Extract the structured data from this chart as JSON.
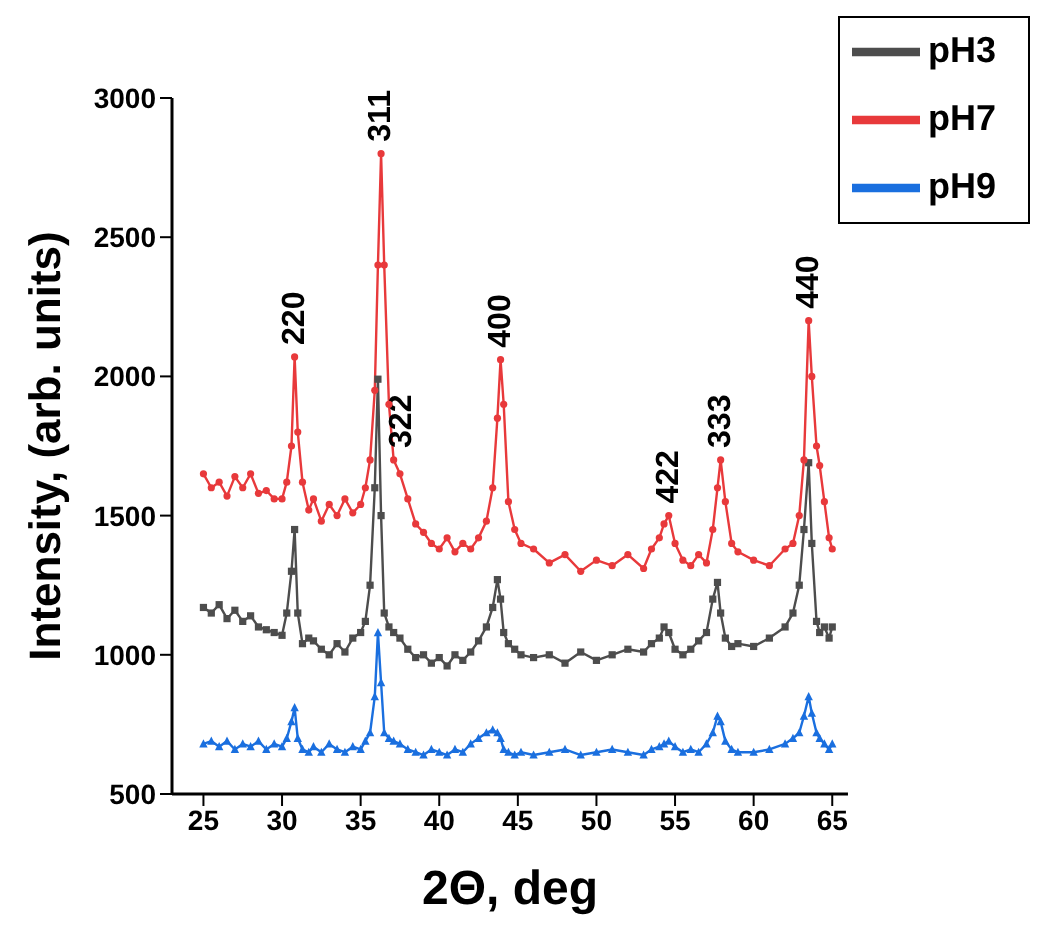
{
  "chart_data": {
    "type": "line",
    "xlabel": "2Θ, deg",
    "ylabel": "Intensity, (arb. units)",
    "x": [
      25,
      25.5,
      26,
      26.5,
      27,
      27.5,
      28,
      28.5,
      29,
      29.5,
      30,
      30.3,
      30.6,
      30.8,
      31.0,
      31.3,
      31.7,
      32,
      32.5,
      33,
      33.5,
      34,
      34.5,
      35,
      35.3,
      35.6,
      35.9,
      36.1,
      36.3,
      36.5,
      36.8,
      37.1,
      37.5,
      38,
      38.5,
      39,
      39.5,
      40,
      40.5,
      41,
      41.5,
      42,
      42.5,
      43,
      43.4,
      43.7,
      43.9,
      44.1,
      44.4,
      44.8,
      45.2,
      46,
      47,
      48,
      49,
      50,
      51,
      52,
      53,
      53.5,
      54,
      54.3,
      54.6,
      55,
      55.5,
      56,
      56.5,
      57,
      57.4,
      57.7,
      57.9,
      58.2,
      58.6,
      59,
      60,
      61,
      62,
      62.5,
      62.9,
      63.2,
      63.5,
      63.7,
      64,
      64.2,
      64.5,
      64.8,
      65
    ],
    "series": [
      {
        "name": "pH3",
        "color": "#4d4d4d",
        "marker": "square",
        "values": [
          1170,
          1150,
          1180,
          1130,
          1160,
          1120,
          1140,
          1100,
          1090,
          1080,
          1070,
          1150,
          1300,
          1450,
          1150,
          1040,
          1060,
          1050,
          1020,
          1000,
          1040,
          1010,
          1060,
          1080,
          1120,
          1250,
          1600,
          1990,
          1500,
          1150,
          1100,
          1080,
          1060,
          1020,
          990,
          1000,
          970,
          990,
          960,
          1000,
          980,
          1010,
          1050,
          1100,
          1170,
          1270,
          1200,
          1080,
          1040,
          1020,
          1000,
          990,
          1000,
          970,
          1010,
          980,
          1000,
          1020,
          1010,
          1040,
          1060,
          1100,
          1080,
          1020,
          1000,
          1020,
          1050,
          1080,
          1200,
          1260,
          1150,
          1060,
          1030,
          1040,
          1030,
          1060,
          1100,
          1150,
          1250,
          1450,
          1690,
          1400,
          1120,
          1080,
          1100,
          1060,
          1100
        ]
      },
      {
        "name": "pH7",
        "color": "#e8393b",
        "marker": "circle",
        "values": [
          1650,
          1600,
          1620,
          1570,
          1640,
          1600,
          1650,
          1580,
          1590,
          1560,
          1560,
          1620,
          1750,
          2070,
          1800,
          1620,
          1520,
          1560,
          1480,
          1540,
          1500,
          1560,
          1510,
          1540,
          1600,
          1700,
          1950,
          2400,
          2800,
          2400,
          1900,
          1700,
          1650,
          1560,
          1470,
          1440,
          1400,
          1380,
          1420,
          1370,
          1400,
          1380,
          1420,
          1480,
          1600,
          1850,
          2060,
          1900,
          1550,
          1450,
          1400,
          1380,
          1330,
          1360,
          1300,
          1340,
          1320,
          1360,
          1310,
          1380,
          1420,
          1470,
          1500,
          1400,
          1340,
          1320,
          1360,
          1330,
          1450,
          1600,
          1700,
          1550,
          1400,
          1370,
          1340,
          1320,
          1380,
          1400,
          1500,
          1700,
          2200,
          2000,
          1750,
          1680,
          1550,
          1420,
          1380
        ]
      },
      {
        "name": "pH9",
        "color": "#1a6fdf",
        "marker": "triangle",
        "values": [
          680,
          690,
          670,
          690,
          660,
          680,
          670,
          690,
          660,
          680,
          670,
          700,
          760,
          810,
          700,
          660,
          650,
          670,
          650,
          680,
          660,
          650,
          670,
          660,
          690,
          720,
          850,
          1080,
          900,
          720,
          700,
          690,
          680,
          660,
          650,
          640,
          660,
          650,
          640,
          660,
          650,
          680,
          700,
          720,
          730,
          720,
          700,
          660,
          650,
          640,
          650,
          640,
          650,
          660,
          640,
          650,
          660,
          650,
          640,
          660,
          670,
          680,
          690,
          670,
          650,
          660,
          650,
          680,
          720,
          780,
          760,
          690,
          660,
          650,
          650,
          660,
          680,
          700,
          720,
          780,
          850,
          790,
          720,
          700,
          680,
          660,
          680
        ]
      }
    ],
    "xlim": [
      23,
      66
    ],
    "xticks": [
      25,
      30,
      35,
      40,
      45,
      50,
      55,
      60,
      65
    ],
    "ylim": [
      500,
      3000
    ],
    "yticks": [
      500,
      1000,
      1500,
      2000,
      2500,
      3000
    ],
    "grid": false,
    "legend": "top right",
    "annotations": [
      {
        "text": "220",
        "x": 30.8,
        "y": 2070
      },
      {
        "text": "311",
        "x": 36.3,
        "y": 2800
      },
      {
        "text": "322",
        "x": 37.6,
        "y": 1700
      },
      {
        "text": "400",
        "x": 43.9,
        "y": 2060
      },
      {
        "text": "422",
        "x": 54.6,
        "y": 1500
      },
      {
        "text": "333",
        "x": 57.9,
        "y": 1700
      },
      {
        "text": "440",
        "x": 63.5,
        "y": 2200
      }
    ]
  }
}
